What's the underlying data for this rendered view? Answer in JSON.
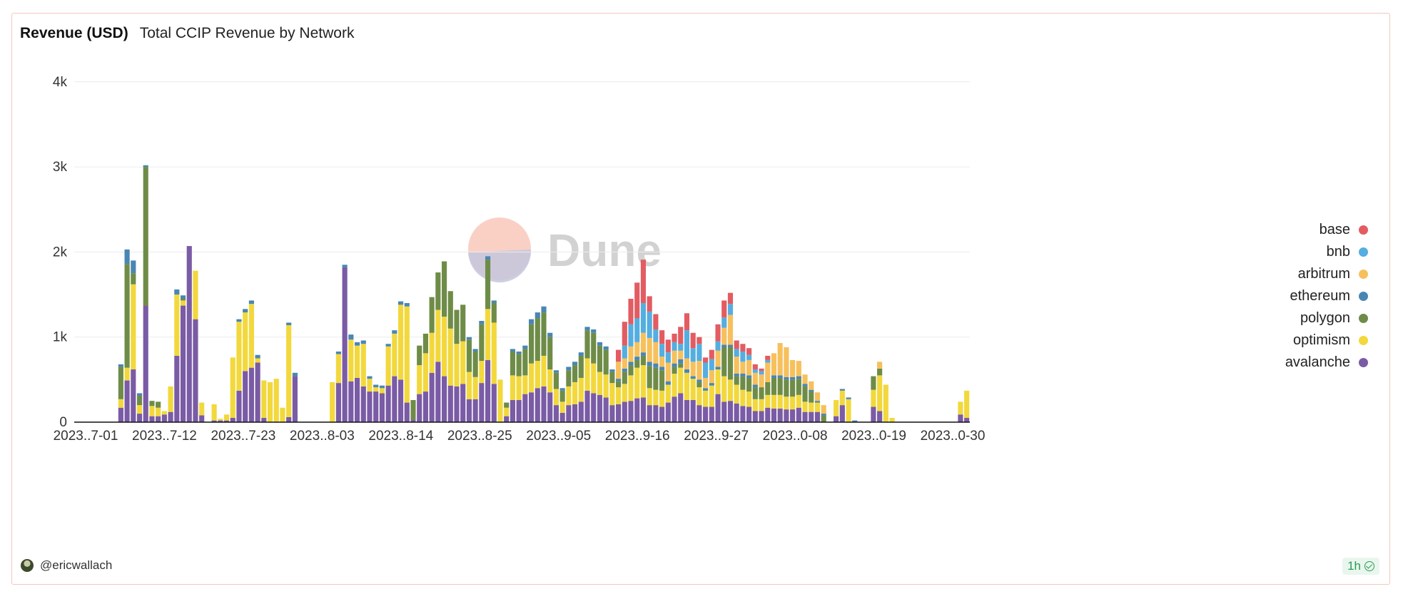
{
  "header": {
    "title": "Revenue (USD)",
    "subtitle": "Total CCIP Revenue by Network"
  },
  "watermark": {
    "text": "Dune"
  },
  "footer": {
    "user": "@ericwallach",
    "freshness": "1h"
  },
  "icons": {
    "avatar": "user-avatar",
    "freshness": "check-circle-icon"
  },
  "chart_data": {
    "type": "bar",
    "stacked": true,
    "title": "Total CCIP Revenue by Network",
    "xlabel": "",
    "ylabel": "",
    "ylim": [
      0,
      4300
    ],
    "yticks": [
      0,
      1000,
      2000,
      3000,
      4000
    ],
    "ytick_labels": [
      "0",
      "1k",
      "2k",
      "3k",
      "4k"
    ],
    "xtick_labels": [
      "2023..7-01",
      "2023..7-12",
      "2023..7-23",
      "2023..8-03",
      "2023..8-14",
      "2023..8-25",
      "2023..9-05",
      "2023..9-16",
      "2023..9-27",
      "2023..0-08",
      "2023..0-19",
      "2023..0-30"
    ],
    "x_start": "2023-07-01",
    "x_end": "2023-10-30",
    "grid": true,
    "legend_position": "right",
    "series": [
      {
        "name": "avalanche",
        "color": "#7a5ba5",
        "values": [
          0,
          0,
          0,
          0,
          0,
          0,
          0,
          170,
          490,
          620,
          100,
          1370,
          70,
          70,
          90,
          120,
          780,
          1370,
          2070,
          1210,
          80,
          0,
          20,
          20,
          20,
          50,
          370,
          600,
          640,
          700,
          50,
          0,
          0,
          0,
          60,
          540,
          0,
          0,
          0,
          0,
          0,
          0,
          460,
          1820,
          480,
          520,
          420,
          360,
          360,
          340,
          430,
          540,
          500,
          230,
          30,
          330,
          360,
          580,
          710,
          540,
          430,
          420,
          450,
          270,
          270,
          460,
          730,
          450,
          0,
          70,
          260,
          260,
          330,
          350,
          400,
          420,
          350,
          200,
          110,
          200,
          210,
          240,
          370,
          340,
          320,
          290,
          200,
          210,
          240,
          250,
          280,
          290,
          200,
          200,
          180,
          230,
          300,
          340,
          260,
          260,
          200,
          180,
          180,
          330,
          240,
          250,
          220,
          190,
          180,
          130,
          130,
          170,
          160,
          160,
          150,
          150,
          170,
          120,
          120,
          120,
          0,
          0,
          70,
          200,
          0,
          0,
          0,
          0,
          180,
          130,
          0,
          0,
          0,
          0,
          0,
          0,
          0,
          0,
          0,
          0,
          0,
          0,
          90,
          50
        ]
      },
      {
        "name": "optimism",
        "color": "#f2d83c",
        "values": [
          0,
          0,
          0,
          0,
          0,
          0,
          0,
          100,
          150,
          1000,
          100,
          0,
          120,
          100,
          40,
          300,
          720,
          60,
          0,
          570,
          150,
          0,
          190,
          20,
          70,
          710,
          810,
          690,
          750,
          50,
          440,
          470,
          510,
          170,
          1080,
          0,
          0,
          0,
          0,
          0,
          0,
          470,
          340,
          0,
          490,
          380,
          500,
          150,
          50,
          60,
          460,
          500,
          880,
          1130,
          0,
          340,
          450,
          470,
          610,
          700,
          670,
          500,
          500,
          320,
          260,
          260,
          600,
          720,
          500,
          100,
          290,
          280,
          220,
          340,
          320,
          360,
          270,
          190,
          130,
          220,
          260,
          280,
          380,
          350,
          270,
          270,
          260,
          200,
          210,
          300,
          360,
          380,
          200,
          180,
          190,
          210,
          270,
          300,
          320,
          250,
          210,
          190,
          250,
          290,
          300,
          250,
          220,
          190,
          180,
          140,
          140,
          150,
          160,
          160,
          150,
          150,
          150,
          120,
          110,
          110,
          0,
          0,
          190,
          170,
          270,
          0,
          0,
          0,
          200,
          420,
          440,
          50,
          0,
          0,
          0,
          0,
          0,
          0,
          0,
          0,
          0,
          0,
          150,
          320
        ]
      },
      {
        "name": "polygon",
        "color": "#6e8c47",
        "values": [
          0,
          0,
          0,
          0,
          0,
          0,
          0,
          380,
          1220,
          130,
          110,
          1630,
          60,
          70,
          0,
          0,
          0,
          20,
          0,
          0,
          0,
          0,
          0,
          0,
          0,
          0,
          0,
          0,
          0,
          0,
          0,
          0,
          0,
          0,
          0,
          0,
          0,
          0,
          0,
          0,
          0,
          0,
          0,
          0,
          0,
          0,
          0,
          0,
          0,
          0,
          0,
          0,
          0,
          0,
          230,
          230,
          230,
          420,
          440,
          650,
          440,
          400,
          430,
          380,
          300,
          430,
          580,
          230,
          0,
          60,
          280,
          260,
          310,
          460,
          500,
          510,
          380,
          190,
          130,
          190,
          200,
          260,
          330,
          360,
          310,
          290,
          130,
          70,
          140,
          120,
          90,
          110,
          260,
          260,
          240,
          0,
          80,
          50,
          0,
          0,
          60,
          0,
          0,
          0,
          340,
          380,
          100,
          160,
          160,
          140,
          140,
          150,
          200,
          200,
          200,
          200,
          190,
          180,
          130,
          0,
          80,
          0,
          0,
          0,
          0,
          0,
          0,
          0,
          160,
          80,
          0,
          0,
          0,
          0,
          0,
          0,
          0,
          0,
          0,
          0,
          0,
          0,
          0,
          0
        ]
      },
      {
        "name": "ethereum",
        "color": "#4a86b2",
        "values": [
          0,
          0,
          0,
          0,
          0,
          0,
          0,
          30,
          170,
          150,
          30,
          20,
          0,
          0,
          0,
          0,
          60,
          40,
          0,
          0,
          0,
          0,
          0,
          0,
          0,
          0,
          30,
          40,
          40,
          40,
          0,
          0,
          0,
          0,
          30,
          40,
          0,
          0,
          0,
          0,
          0,
          0,
          30,
          30,
          60,
          40,
          40,
          30,
          30,
          30,
          30,
          40,
          40,
          40,
          0,
          0,
          0,
          0,
          0,
          0,
          0,
          0,
          0,
          30,
          30,
          40,
          40,
          30,
          0,
          0,
          30,
          30,
          40,
          60,
          70,
          70,
          50,
          30,
          30,
          40,
          40,
          40,
          40,
          40,
          40,
          40,
          30,
          30,
          40,
          40,
          40,
          40,
          50,
          50,
          40,
          40,
          40,
          50,
          40,
          30,
          30,
          30,
          30,
          30,
          30,
          30,
          30,
          30,
          30,
          30,
          0,
          0,
          30,
          30,
          30,
          30,
          30,
          30,
          20,
          20,
          20,
          0,
          0,
          20,
          20,
          20,
          0,
          0,
          0,
          0,
          0,
          0,
          0,
          0,
          0,
          0,
          0,
          0,
          0,
          0,
          0,
          0,
          0,
          0
        ]
      },
      {
        "name": "arbitrum",
        "color": "#f6c05c",
        "values": [
          0,
          0,
          0,
          0,
          0,
          0,
          0,
          0,
          0,
          0,
          0,
          0,
          0,
          0,
          0,
          0,
          0,
          0,
          0,
          0,
          0,
          0,
          0,
          0,
          0,
          0,
          0,
          0,
          0,
          0,
          0,
          0,
          0,
          0,
          0,
          0,
          0,
          0,
          0,
          0,
          0,
          0,
          0,
          0,
          0,
          0,
          0,
          0,
          0,
          0,
          0,
          0,
          0,
          0,
          0,
          0,
          0,
          0,
          0,
          0,
          0,
          0,
          0,
          0,
          0,
          0,
          0,
          0,
          0,
          0,
          0,
          0,
          0,
          0,
          0,
          0,
          0,
          0,
          0,
          0,
          0,
          0,
          0,
          0,
          0,
          0,
          0,
          200,
          120,
          180,
          170,
          230,
          280,
          250,
          120,
          220,
          150,
          100,
          130,
          170,
          220,
          120,
          150,
          190,
          200,
          350,
          200,
          140,
          180,
          140,
          150,
          230,
          260,
          380,
          350,
          200,
          180,
          110,
          100,
          100,
          100,
          0,
          0,
          0,
          0,
          0,
          0,
          0,
          0,
          80,
          0,
          0,
          0,
          0,
          0,
          0,
          0,
          0,
          0,
          0,
          0,
          0,
          0,
          0
        ]
      },
      {
        "name": "bnb",
        "color": "#54aee0",
        "values": [
          0,
          0,
          0,
          0,
          0,
          0,
          0,
          0,
          0,
          0,
          0,
          0,
          0,
          0,
          0,
          0,
          0,
          0,
          0,
          0,
          0,
          0,
          0,
          0,
          0,
          0,
          0,
          0,
          0,
          0,
          0,
          0,
          0,
          0,
          0,
          0,
          0,
          0,
          0,
          0,
          0,
          0,
          0,
          0,
          0,
          0,
          0,
          0,
          0,
          0,
          0,
          0,
          0,
          0,
          0,
          0,
          0,
          0,
          0,
          0,
          0,
          0,
          0,
          0,
          0,
          0,
          0,
          0,
          0,
          0,
          0,
          0,
          0,
          0,
          0,
          0,
          0,
          0,
          0,
          0,
          0,
          0,
          0,
          0,
          0,
          0,
          0,
          0,
          150,
          260,
          280,
          350,
          310,
          150,
          150,
          120,
          100,
          80,
          330,
          160,
          200,
          180,
          130,
          110,
          120,
          130,
          90,
          120,
          60,
          40,
          40,
          30,
          0,
          0,
          0,
          0,
          0,
          0,
          0,
          0,
          0,
          0,
          0,
          0,
          0,
          0,
          0,
          0,
          0,
          0,
          0,
          0,
          0,
          0,
          0,
          0,
          0,
          0,
          0,
          0,
          0,
          0,
          0,
          0,
          0,
          0
        ]
      },
      {
        "name": "base",
        "color": "#e25c62",
        "values": [
          0,
          0,
          0,
          0,
          0,
          0,
          0,
          0,
          0,
          0,
          0,
          0,
          0,
          0,
          0,
          0,
          0,
          0,
          0,
          0,
          0,
          0,
          0,
          0,
          0,
          0,
          0,
          0,
          0,
          0,
          0,
          0,
          0,
          0,
          0,
          0,
          0,
          0,
          0,
          0,
          0,
          0,
          0,
          0,
          0,
          0,
          0,
          0,
          0,
          0,
          0,
          0,
          0,
          0,
          0,
          0,
          0,
          0,
          0,
          0,
          0,
          0,
          0,
          0,
          0,
          0,
          0,
          0,
          0,
          0,
          0,
          0,
          0,
          0,
          0,
          0,
          0,
          0,
          0,
          0,
          0,
          0,
          0,
          0,
          0,
          0,
          0,
          140,
          280,
          300,
          420,
          510,
          180,
          180,
          160,
          150,
          100,
          200,
          200,
          180,
          80,
          60,
          110,
          200,
          200,
          130,
          100,
          90,
          80,
          60,
          30,
          50,
          0,
          0,
          0,
          0,
          0,
          0,
          0,
          0,
          0,
          0,
          0,
          0,
          0,
          0,
          0,
          0,
          0,
          0,
          0,
          0,
          0,
          0,
          0,
          0,
          0,
          0,
          0,
          0,
          0,
          0,
          0,
          0,
          0,
          0
        ]
      }
    ]
  }
}
